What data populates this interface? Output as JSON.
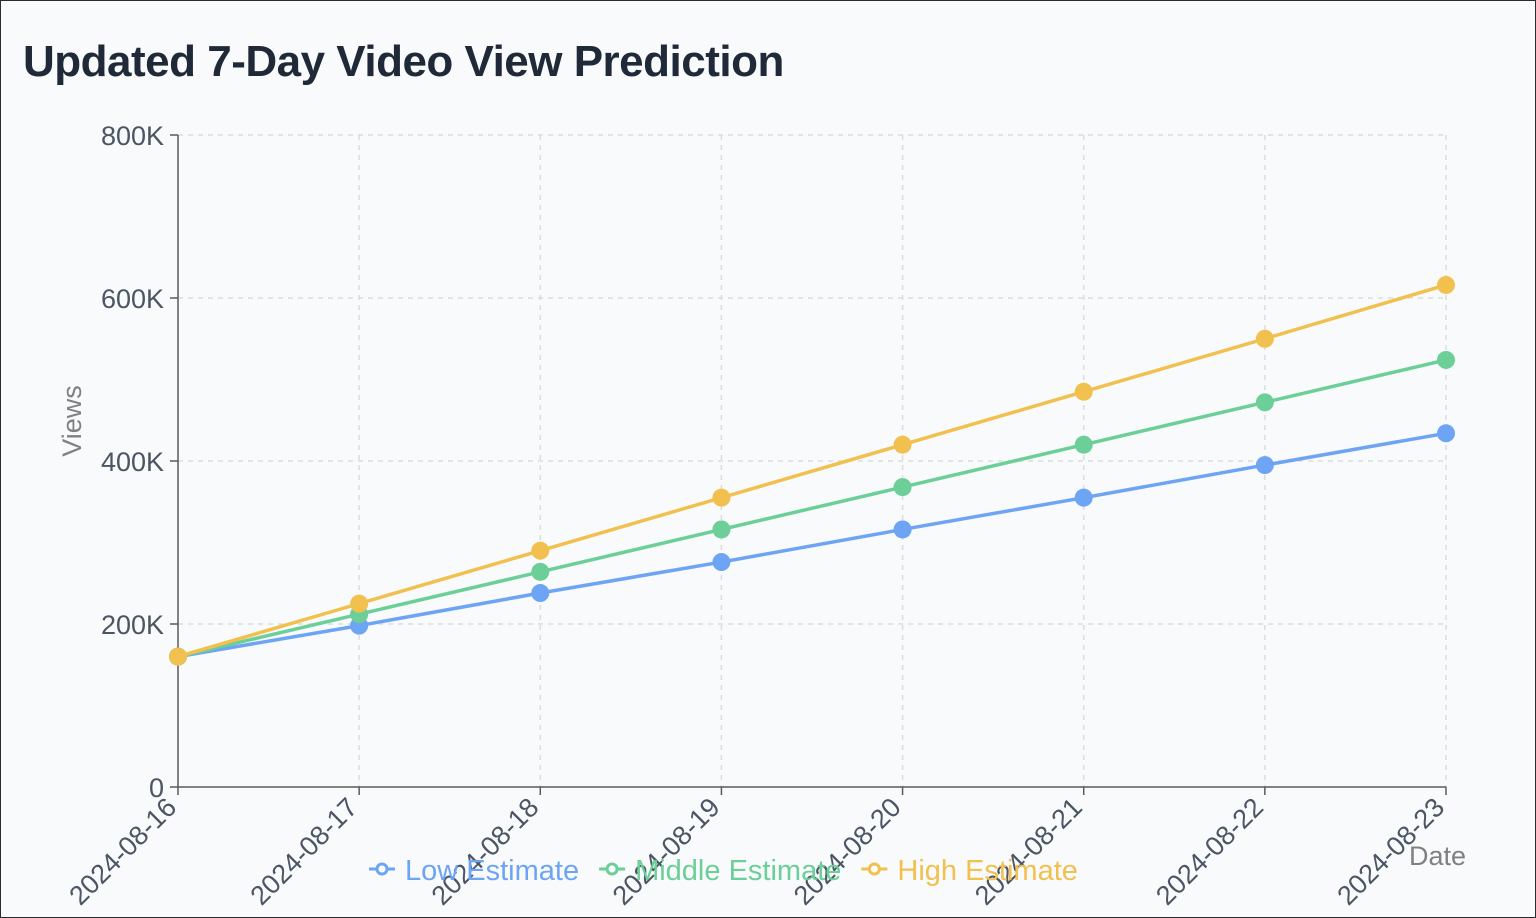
{
  "title": "Updated 7-Day Video View Prediction",
  "chart_data": {
    "type": "line",
    "title": "Updated 7-Day Video View Prediction",
    "xlabel": "Date",
    "ylabel": "Views",
    "x": [
      "2024-08-16",
      "2024-08-17",
      "2024-08-18",
      "2024-08-19",
      "2024-08-20",
      "2024-08-21",
      "2024-08-22",
      "2024-08-23"
    ],
    "ylim": [
      0,
      800000
    ],
    "yticks": [
      0,
      200000,
      400000,
      600000,
      800000
    ],
    "ytick_labels": [
      "0",
      "200K",
      "400K",
      "600K",
      "800K"
    ],
    "grid": true,
    "grid_style": "dashed",
    "legend_position": "bottom",
    "series": [
      {
        "name": "Low Estimate",
        "color": "#6ea4f4",
        "values": [
          160000,
          198000,
          238000,
          276000,
          316000,
          355000,
          395000,
          434000
        ]
      },
      {
        "name": "Middle Estimate",
        "color": "#6ccf98",
        "values": [
          160000,
          212000,
          264000,
          316000,
          368000,
          420000,
          472000,
          524000
        ]
      },
      {
        "name": "High Estimate",
        "color": "#f2c04e",
        "values": [
          160000,
          225000,
          290000,
          355000,
          420000,
          485000,
          550000,
          616000
        ]
      }
    ]
  }
}
